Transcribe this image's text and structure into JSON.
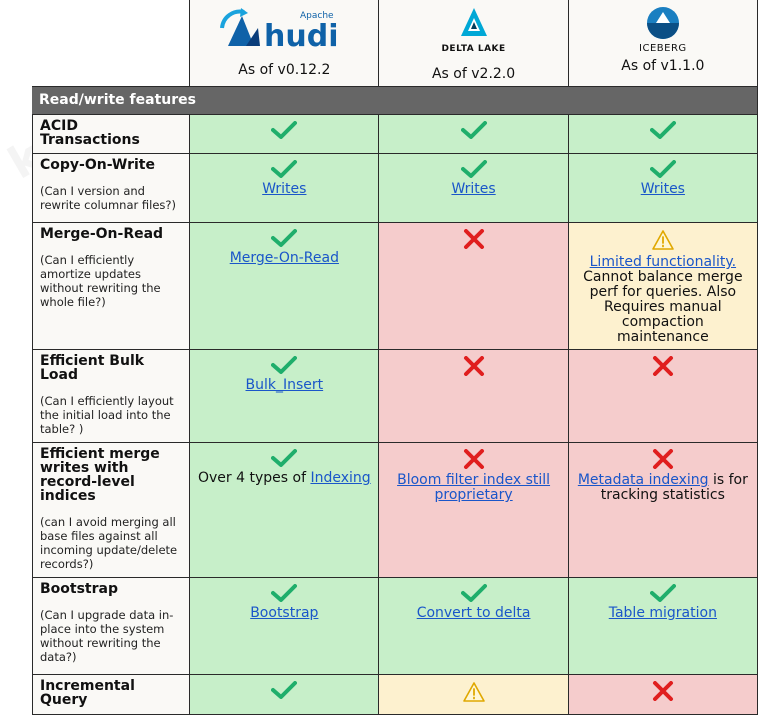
{
  "header": {
    "columns": [
      {
        "brand": "Apache",
        "name": "hudi",
        "version": "As of v0.12.2"
      },
      {
        "name": "DELTA LAKE",
        "version": "As of v2.2.0"
      },
      {
        "name": "ICEBERG",
        "version": "As of v1.1.0"
      }
    ]
  },
  "section": {
    "title": "Read/write features"
  },
  "rows": [
    {
      "title": "ACID Transactions",
      "subtitle": "",
      "cells": [
        {
          "status": "yes",
          "link": "",
          "text": ""
        },
        {
          "status": "yes",
          "link": "",
          "text": ""
        },
        {
          "status": "yes",
          "link": "",
          "text": ""
        }
      ]
    },
    {
      "title": "Copy-On-Write",
      "subtitle": "(Can I version and rewrite columnar files?)",
      "cells": [
        {
          "status": "yes",
          "link": "Writes",
          "text": ""
        },
        {
          "status": "yes",
          "link": "Writes",
          "text": ""
        },
        {
          "status": "yes",
          "link": "Writes",
          "text": ""
        }
      ]
    },
    {
      "title": "Merge-On-Read",
      "subtitle": "(Can I efficiently amortize updates without rewriting the whole file?)",
      "cells": [
        {
          "status": "yes",
          "link": "Merge-On-Read",
          "text": ""
        },
        {
          "status": "no",
          "link": "",
          "text": ""
        },
        {
          "status": "partial",
          "link": "Limited functionality.",
          "text": "Cannot balance merge perf for queries. Also Requires manual compaction maintenance"
        }
      ]
    },
    {
      "title": "Efficient Bulk Load",
      "subtitle": "(Can I efficiently layout the initial load into the table? )",
      "cells": [
        {
          "status": "yes",
          "link": "Bulk_Insert",
          "text": ""
        },
        {
          "status": "no",
          "link": "",
          "text": ""
        },
        {
          "status": "no",
          "link": "",
          "text": ""
        }
      ]
    },
    {
      "title": "Efficient merge writes with record-level indices",
      "subtitle": "(can I avoid merging all base files against all incoming update/delete records?)",
      "cells": [
        {
          "status": "yes",
          "pre": "Over 4 types of ",
          "link": "Indexing",
          "text": ""
        },
        {
          "status": "no",
          "link": "Bloom filter index still proprietary",
          "text": ""
        },
        {
          "status": "no",
          "link": "Metadata indexing",
          "post": " is for tracking statistics",
          "text": ""
        }
      ]
    },
    {
      "title": "Bootstrap",
      "subtitle": "(Can I upgrade data in-place into the system without rewriting the data?)",
      "cells": [
        {
          "status": "yes",
          "link": "Bootstrap",
          "text": ""
        },
        {
          "status": "yes",
          "link": "Convert to delta",
          "text": ""
        },
        {
          "status": "yes",
          "link": "Table migration",
          "text": ""
        }
      ]
    },
    {
      "title": "Incremental Query",
      "subtitle": "",
      "cells": [
        {
          "status": "yes",
          "link": "",
          "text": ""
        },
        {
          "status": "partial",
          "link": "",
          "text": ""
        },
        {
          "status": "no",
          "link": "",
          "text": ""
        }
      ]
    }
  ],
  "colors": {
    "green": "#c7efc9",
    "red": "#f5cccc",
    "yellow": "#fdf1cf",
    "check": "#1fae6b",
    "cross": "#e01e1e",
    "link": "#1a56c9"
  }
}
